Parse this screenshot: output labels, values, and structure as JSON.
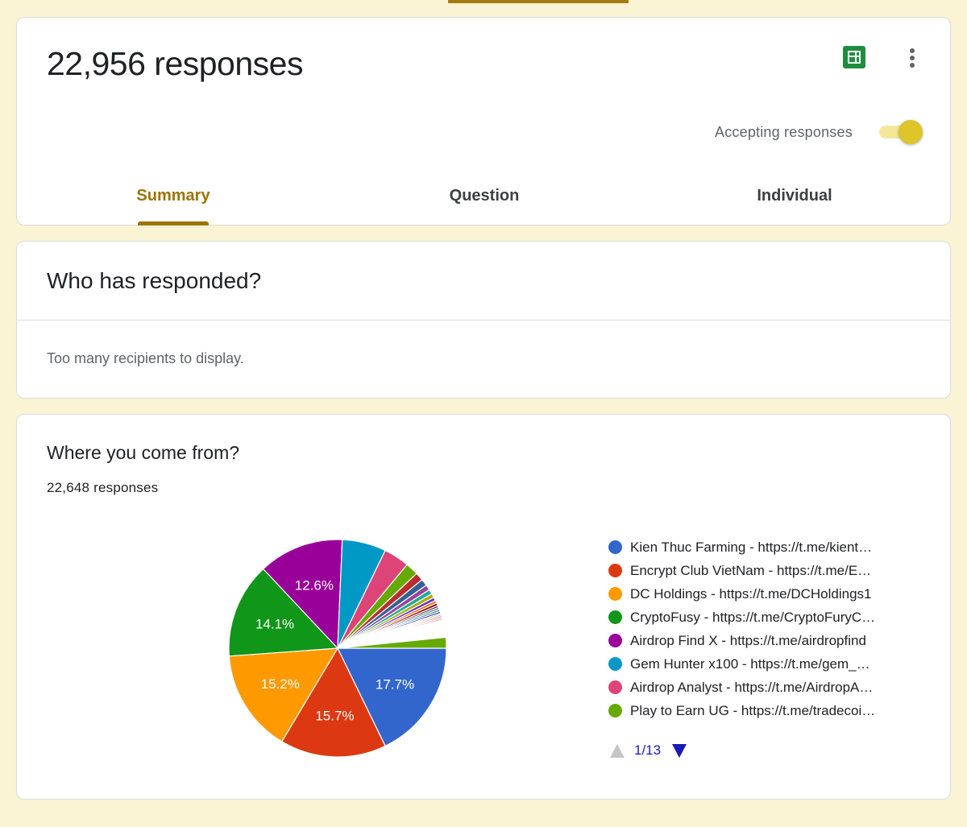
{
  "header": {
    "response_count": "22,956 responses",
    "accepting_label": "Accepting responses",
    "accepting": true,
    "tabs": [
      {
        "label": "Summary",
        "active": true
      },
      {
        "label": "Question",
        "active": false
      },
      {
        "label": "Individual",
        "active": false
      }
    ],
    "icons": {
      "sheets": "google-sheets-icon",
      "more": "more-vert-icon"
    }
  },
  "who": {
    "title": "Who has responded?",
    "note": "Too many recipients to display."
  },
  "question": {
    "title": "Where you come from?",
    "count": "22,648 responses",
    "pager": "1/13"
  },
  "chart_data": {
    "type": "pie",
    "title": "Where you come from?",
    "slices": [
      {
        "label": "Kien Thuc Farming - https://t.me/kient…",
        "value": 17.7,
        "color": "#3366cc",
        "show_label": true
      },
      {
        "label": "Encrypt Club VietNam - https://t.me/E…",
        "value": 15.7,
        "color": "#dc3912",
        "show_label": true
      },
      {
        "label": "DC Holdings - https://t.me/DCHoldings1",
        "value": 15.2,
        "color": "#ff9900",
        "show_label": true
      },
      {
        "label": "CryptoFusy - https://t.me/CryptoFuryC…",
        "value": 14.1,
        "color": "#109618",
        "show_label": true
      },
      {
        "label": "Airdrop Find X - https://t.me/airdropfind",
        "value": 12.6,
        "color": "#990099",
        "show_label": true
      },
      {
        "label": "Gem Hunter x100 - https://t.me/gem_…",
        "value": 6.5,
        "color": "#0099c6",
        "show_label": false
      },
      {
        "label": "Airdrop Analyst - https://t.me/AirdropA…",
        "value": 3.8,
        "color": "#dd4477",
        "show_label": false
      },
      {
        "label": "Play to Earn UG - https://t.me/tradecoi…",
        "value": 1.9,
        "color": "#66aa00",
        "show_label": false
      },
      {
        "label": "",
        "value": 1.2,
        "color": "#b82e2e",
        "show_label": false
      },
      {
        "label": "",
        "value": 1.0,
        "color": "#316395",
        "show_label": false
      },
      {
        "label": "",
        "value": 0.8,
        "color": "#994499",
        "show_label": false
      },
      {
        "label": "",
        "value": 0.7,
        "color": "#22aa99",
        "show_label": false
      },
      {
        "label": "",
        "value": 0.6,
        "color": "#aaaa11",
        "show_label": false
      },
      {
        "label": "",
        "value": 0.5,
        "color": "#6633cc",
        "show_label": false
      },
      {
        "label": "",
        "value": 0.4,
        "color": "#e67300",
        "show_label": false
      },
      {
        "label": "",
        "value": 0.4,
        "color": "#8b0707",
        "show_label": false
      },
      {
        "label": "",
        "value": 0.3,
        "color": "#651067",
        "show_label": false
      },
      {
        "label": "",
        "value": 0.3,
        "color": "#329262",
        "show_label": false
      },
      {
        "label": "",
        "value": 0.3,
        "color": "#5574a6",
        "show_label": false
      },
      {
        "label": "",
        "value": 0.3,
        "color": "#3b3eac",
        "show_label": false
      },
      {
        "label": "",
        "value": 0.2,
        "color": "#b77322",
        "show_label": false
      },
      {
        "label": "",
        "value": 0.2,
        "color": "#16d620",
        "show_label": false
      },
      {
        "label": "",
        "value": 0.2,
        "color": "#b91383",
        "show_label": false
      },
      {
        "label": "",
        "value": 0.2,
        "color": "#f4359e",
        "show_label": false
      },
      {
        "label": "",
        "value": 0.2,
        "color": "#9c5935",
        "show_label": false
      },
      {
        "label": "",
        "value": 2.6,
        "color": "#ffffff",
        "show_label": false
      },
      {
        "label": "",
        "value": 1.6,
        "color": "#66aa00",
        "show_label": false
      }
    ],
    "legend": [
      {
        "label": "Kien Thuc Farming - https://t.me/kient…",
        "color": "#3366cc"
      },
      {
        "label": "Encrypt Club VietNam - https://t.me/E…",
        "color": "#dc3912"
      },
      {
        "label": "DC Holdings - https://t.me/DCHoldings1",
        "color": "#ff9900"
      },
      {
        "label": "CryptoFusy - https://t.me/CryptoFuryC…",
        "color": "#109618"
      },
      {
        "label": "Airdrop Find X - https://t.me/airdropfind",
        "color": "#990099"
      },
      {
        "label": "Gem Hunter x100 - https://t.me/gem_…",
        "color": "#0099c6"
      },
      {
        "label": "Airdrop Analyst - https://t.me/AirdropA…",
        "color": "#dd4477"
      },
      {
        "label": "Play to Earn UG - https://t.me/tradecoi…",
        "color": "#66aa00"
      }
    ],
    "legend_placement": "right"
  }
}
